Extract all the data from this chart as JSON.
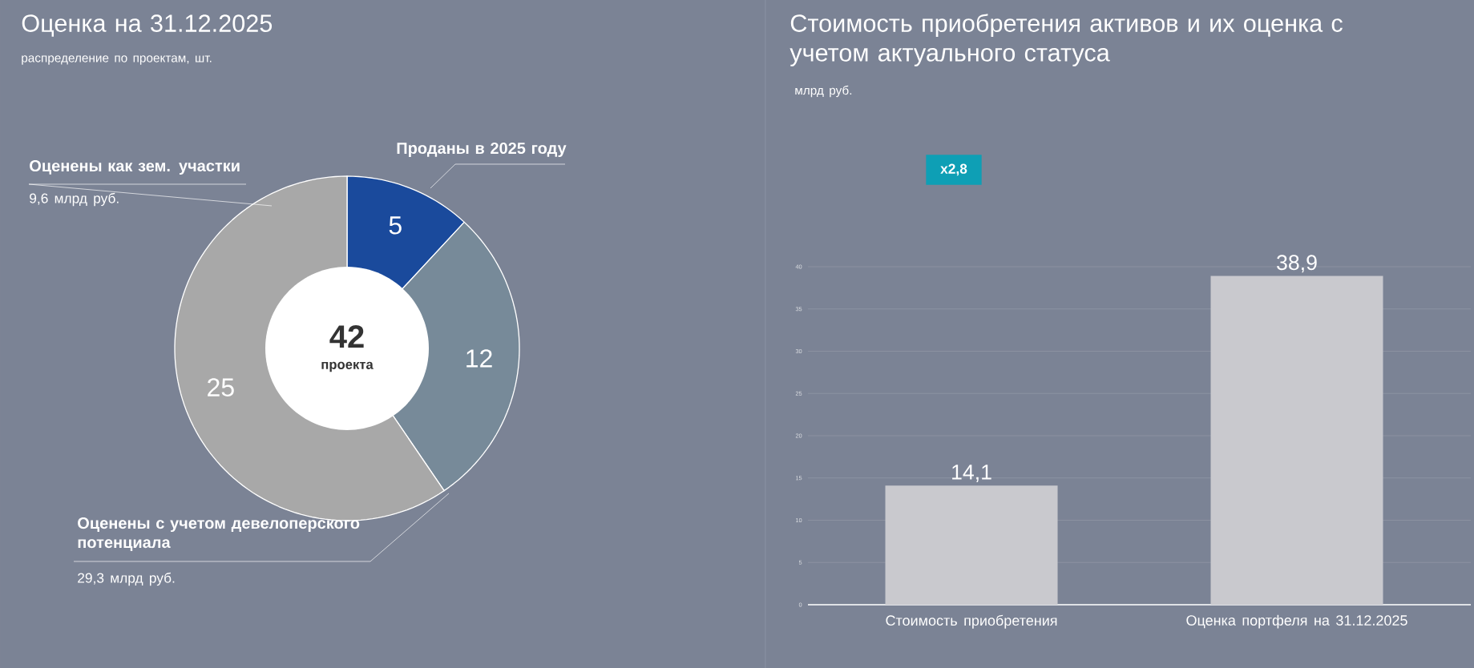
{
  "chart_data": [
    {
      "type": "donut",
      "title": "Оценка на 31.12.2025",
      "subtitle": "распределение по проектам, шт.",
      "categories": [
        "Проданы в 2025 году",
        "Оценены с учетом девелоперского потенциала",
        "Оценены как зем. участки"
      ],
      "values": [
        5,
        12,
        25
      ],
      "colors": [
        "#1a4a9c",
        "#778a99",
        "#a8a8a8"
      ],
      "data_labels": true,
      "annotations": [
        "42",
        "проекта",
        "9,6 млрд руб.",
        "29,3 млрд руб."
      ]
    },
    {
      "type": "bar",
      "title": "Стоимость приобретения активов и их оценка с учетом актуального статуса",
      "subtitle": "млрд руб.",
      "categories": [
        "Стоимость приобретения",
        "Оценка портфеля на 31.12.2025"
      ],
      "values": [
        14.1,
        38.9
      ],
      "value_labels": [
        "14,1",
        "38,9"
      ],
      "color": "#c9c9ce",
      "ylim": [
        0,
        40
      ],
      "yticks": [
        0,
        5,
        10,
        15,
        20,
        25,
        30,
        35,
        40
      ],
      "grid": "y",
      "annotations": [
        "x2,8"
      ]
    }
  ]
}
